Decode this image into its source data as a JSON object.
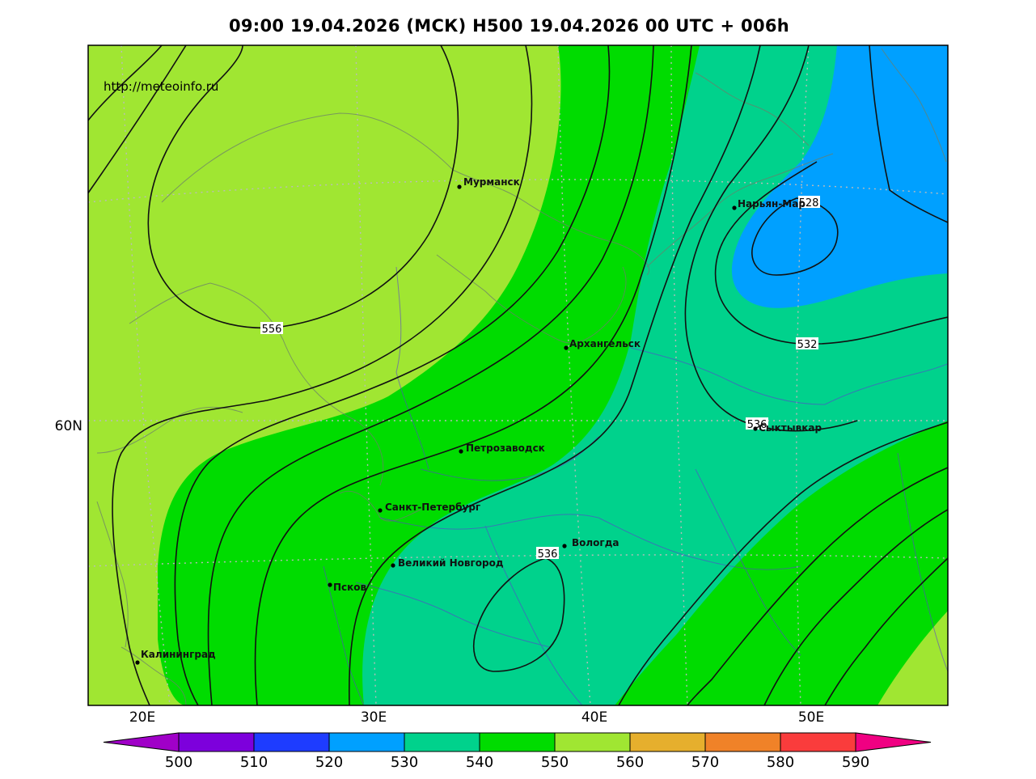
{
  "title": "09:00 19.04.2026 (МСК) H500  19.04.2026 00 UTC + 006h",
  "source_url": "http://meteoinfo.ru",
  "lon_labels": [
    "20E",
    "30E",
    "40E",
    "50E"
  ],
  "lat_labels": [
    "60N"
  ],
  "cities": [
    {
      "name": "Мурманск"
    },
    {
      "name": "Нарьян-Мар"
    },
    {
      "name": "Архангельск"
    },
    {
      "name": "Сыктывкар"
    },
    {
      "name": "Петрозаводск"
    },
    {
      "name": "Санкт-Петербург"
    },
    {
      "name": "Вологда"
    },
    {
      "name": "Великий Новгород"
    },
    {
      "name": "Псков"
    },
    {
      "name": "Калининград"
    }
  ],
  "contour_labels": [
    "556",
    "528",
    "532",
    "536",
    "536"
  ],
  "colorbar": {
    "ticks": [
      "500",
      "510",
      "520",
      "530",
      "540",
      "550",
      "560",
      "570",
      "580",
      "590"
    ],
    "colors": [
      "#a000c8",
      "#7d00dc",
      "#1e3cff",
      "#00a0ff",
      "#00d28c",
      "#00dc00",
      "#a0e632",
      "#e6af2d",
      "#f08228",
      "#fa3c3c",
      "#f00082"
    ]
  }
}
